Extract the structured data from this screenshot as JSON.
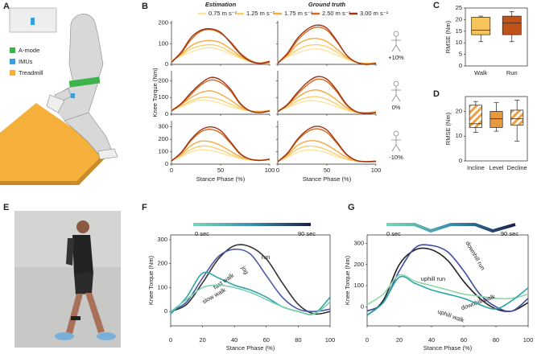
{
  "figures": {
    "a": {
      "label": "A",
      "legend": [
        "A-mode",
        "IMUs",
        "Treadmill"
      ],
      "legend_colors": [
        "#3db44b",
        "#3aa0dc",
        "#f5b03c"
      ]
    },
    "e": {
      "label": "E"
    }
  },
  "chart_data": [
    {
      "type": "line-grid",
      "panel": "B",
      "columns": [
        "Estimation",
        "Ground truth"
      ],
      "ylabel": "Knee Torque (Nm)",
      "xlabel": "Stance Phase (%)",
      "x": [
        0,
        10,
        20,
        30,
        40,
        50,
        60,
        70,
        80,
        90,
        100
      ],
      "xlim": [
        0,
        100
      ],
      "xticks": [
        0,
        50,
        100
      ],
      "series": [
        {
          "name": "0.75 m s⁻¹",
          "color": "#fde3a0"
        },
        {
          "name": "1.25 m s⁻¹",
          "color": "#f9cf6e"
        },
        {
          "name": "1.75 m s⁻¹",
          "color": "#f4a93e"
        },
        {
          "name": "2.50 m s⁻¹",
          "color": "#d4681f"
        },
        {
          "name": "3.00 m s⁻¹",
          "color": "#9c3413"
        }
      ],
      "rows": [
        {
          "label": "+10%",
          "ylim": [
            0,
            210
          ],
          "yticks": [
            0,
            100,
            200
          ]
        },
        {
          "label": "0%",
          "ylim": [
            0,
            260
          ],
          "yticks": [
            0,
            100,
            200
          ]
        },
        {
          "label": "-10%",
          "ylim": [
            0,
            350
          ],
          "yticks": [
            0,
            100,
            200,
            300
          ]
        }
      ],
      "subplots": [
        {
          "values": [
            [
              20,
              40,
              60,
              75,
              80,
              70,
              50,
              30,
              15,
              10,
              15
            ],
            [
              15,
              45,
              75,
              90,
              95,
              85,
              60,
              35,
              15,
              5,
              10
            ],
            [
              15,
              50,
              90,
              110,
              115,
              105,
              75,
              40,
              15,
              5,
              10
            ],
            [
              10,
              55,
              120,
              160,
              168,
              150,
              110,
              55,
              20,
              5,
              10
            ],
            [
              10,
              60,
              130,
              165,
              172,
              155,
              105,
              50,
              15,
              5,
              15
            ]
          ]
        },
        {
          "values": [
            [
              10,
              35,
              55,
              70,
              75,
              65,
              45,
              25,
              10,
              5,
              10
            ],
            [
              10,
              40,
              70,
              90,
              95,
              85,
              60,
              30,
              10,
              5,
              5
            ],
            [
              10,
              45,
              95,
              120,
              125,
              110,
              75,
              35,
              10,
              5,
              5
            ],
            [
              5,
              50,
              115,
              160,
              180,
              165,
              110,
              45,
              10,
              0,
              5
            ],
            [
              5,
              55,
              125,
              170,
              190,
              175,
              115,
              45,
              10,
              0,
              5
            ]
          ]
        },
        {
          "values": [
            [
              30,
              45,
              70,
              85,
              80,
              65,
              45,
              30,
              20,
              20,
              25
            ],
            [
              25,
              50,
              80,
              100,
              100,
              85,
              60,
              35,
              20,
              15,
              20
            ],
            [
              25,
              60,
              100,
              130,
              140,
              120,
              85,
              45,
              20,
              15,
              20
            ],
            [
              20,
              60,
              120,
              175,
              205,
              190,
              140,
              60,
              20,
              10,
              20
            ],
            [
              20,
              65,
              130,
              185,
              220,
              205,
              150,
              65,
              20,
              10,
              20
            ]
          ]
        },
        {
          "values": [
            [
              20,
              40,
              65,
              80,
              80,
              65,
              45,
              25,
              10,
              10,
              15
            ],
            [
              20,
              45,
              80,
              100,
              105,
              90,
              60,
              30,
              10,
              10,
              15
            ],
            [
              20,
              55,
              100,
              135,
              145,
              125,
              85,
              40,
              15,
              10,
              15
            ],
            [
              15,
              55,
              120,
              175,
              210,
              195,
              135,
              55,
              15,
              5,
              10
            ],
            [
              15,
              60,
              130,
              190,
              225,
              210,
              145,
              60,
              15,
              5,
              10
            ]
          ]
        },
        {
          "values": [
            [
              30,
              60,
              100,
              115,
              110,
              90,
              65,
              45,
              35,
              35,
              40
            ],
            [
              30,
              70,
              120,
              145,
              140,
              115,
              80,
              50,
              35,
              30,
              35
            ],
            [
              30,
              80,
              150,
              185,
              180,
              150,
              105,
              60,
              40,
              30,
              35
            ],
            [
              25,
              90,
              190,
              260,
              280,
              250,
              170,
              80,
              40,
              30,
              40
            ],
            [
              25,
              95,
              200,
              275,
              300,
              270,
              180,
              85,
              40,
              30,
              40
            ]
          ]
        },
        {
          "values": [
            [
              20,
              55,
              95,
              115,
              110,
              90,
              60,
              40,
              25,
              20,
              20
            ],
            [
              20,
              65,
              120,
              145,
              140,
              115,
              75,
              40,
              25,
              20,
              20
            ],
            [
              20,
              75,
              150,
              185,
              185,
              155,
              105,
              55,
              25,
              20,
              20
            ],
            [
              20,
              85,
              190,
              260,
              285,
              255,
              170,
              75,
              30,
              20,
              20
            ],
            [
              20,
              90,
              200,
              275,
              305,
              275,
              180,
              80,
              30,
              20,
              25
            ]
          ]
        }
      ]
    },
    {
      "type": "box",
      "panel": "C",
      "ylabel": "RMSE (Nm)",
      "categories": [
        "Walk",
        "Run"
      ],
      "colors": [
        "#f7c55b",
        "#c0521a"
      ],
      "hatch": false,
      "ylim": [
        0,
        25
      ],
      "yticks": [
        0,
        5,
        10,
        15,
        20,
        25
      ],
      "boxes": [
        {
          "min": 10.5,
          "q1": 13.5,
          "median": 15.5,
          "q3": 21,
          "max": 21.5
        },
        {
          "min": 10.5,
          "q1": 13.5,
          "median": 18.5,
          "q3": 21.5,
          "max": 23.5
        }
      ]
    },
    {
      "type": "box",
      "panel": "D",
      "ylabel": "RMSE (Nm)",
      "categories": [
        "Incline",
        "Level",
        "Decline"
      ],
      "colors": [
        "#f0a040",
        "#e89a3a",
        "#f0a040"
      ],
      "hatch": true,
      "ylim": [
        0,
        26
      ],
      "yticks": [
        0,
        10,
        20
      ],
      "boxes": [
        {
          "min": 11.5,
          "q1": 13.5,
          "median": 15,
          "q3": 22.5,
          "max": 24
        },
        {
          "min": 12,
          "q1": 13.5,
          "median": 17,
          "q3": 20,
          "max": 23.5
        },
        {
          "min": 8,
          "q1": 14.5,
          "median": 17,
          "q3": 20.5,
          "max": 24.5
        }
      ]
    },
    {
      "type": "line",
      "panel": "F",
      "ylabel": "Knee Torque (Nm)",
      "xlabel": "Stance Phase (%)",
      "colorbar_labels": [
        "0 sec",
        "90 sec"
      ],
      "x": [
        0,
        10,
        20,
        30,
        40,
        50,
        60,
        70,
        80,
        90,
        100
      ],
      "xlim": [
        0,
        100
      ],
      "xticks": [
        0,
        20,
        40,
        60,
        80,
        100
      ],
      "ylim": [
        -60,
        320
      ],
      "yticks": [
        0,
        100,
        200,
        300
      ],
      "series": [
        {
          "name": "run",
          "color": "#333333",
          "values": [
            0,
            30,
            120,
            220,
            275,
            270,
            220,
            120,
            30,
            -10,
            0
          ]
        },
        {
          "name": "jog",
          "color": "#4a5aa8",
          "values": [
            0,
            40,
            140,
            230,
            260,
            240,
            150,
            60,
            10,
            0,
            10
          ]
        },
        {
          "name": "fast walk",
          "color": "#2fa3a8",
          "values": [
            -10,
            60,
            160,
            140,
            110,
            90,
            60,
            20,
            0,
            -10,
            60
          ]
        },
        {
          "name": "slow walk",
          "color": "#7fcfb0",
          "values": [
            0,
            50,
            100,
            110,
            100,
            80,
            50,
            20,
            0,
            -10,
            40
          ]
        }
      ]
    },
    {
      "type": "line",
      "panel": "G",
      "ylabel": "Knee Torque (Nm)",
      "xlabel": "Stance Phase (%)",
      "colorbar_labels": [
        "0 sec",
        "90 sec"
      ],
      "x": [
        0,
        10,
        20,
        30,
        40,
        50,
        60,
        70,
        80,
        90,
        100
      ],
      "xlim": [
        0,
        100
      ],
      "xticks": [
        0,
        20,
        40,
        60,
        80,
        100
      ],
      "ylim": [
        -90,
        340
      ],
      "yticks": [
        0,
        100,
        200,
        300
      ],
      "series": [
        {
          "name": "uphill run",
          "color": "#222222",
          "values": [
            -40,
            30,
            200,
            270,
            270,
            220,
            120,
            40,
            -10,
            -20,
            20
          ]
        },
        {
          "name": "downhill run",
          "color": "#3b4aa0",
          "values": [
            -20,
            20,
            170,
            280,
            290,
            260,
            170,
            60,
            0,
            -20,
            40
          ]
        },
        {
          "name": "downhill walk",
          "color": "#8fd8a8",
          "values": [
            10,
            60,
            150,
            120,
            100,
            80,
            60,
            50,
            40,
            40,
            60
          ]
        },
        {
          "name": "uphill walk",
          "color": "#2aa6a8",
          "values": [
            -40,
            20,
            140,
            110,
            80,
            60,
            40,
            10,
            -10,
            30,
            90
          ]
        }
      ]
    }
  ]
}
